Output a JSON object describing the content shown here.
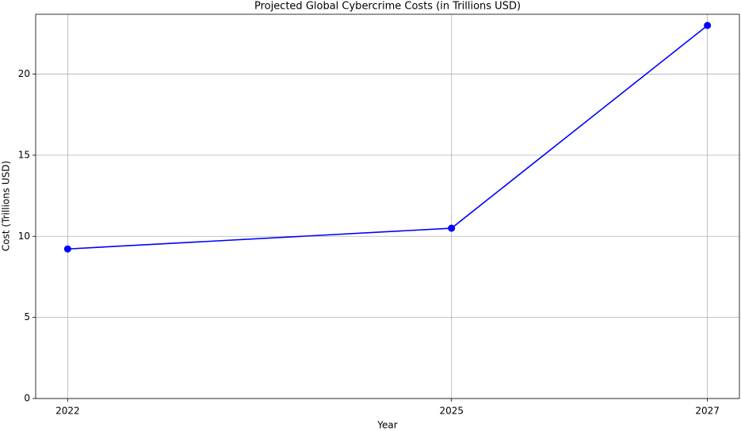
{
  "chart_data": {
    "type": "line",
    "title": "Projected Global Cybercrime Costs (in Trillions USD)",
    "x_label": "Year",
    "y_label": "Cost (Trillions USD)",
    "x": [
      2022,
      2025,
      2027
    ],
    "values": [
      9.22,
      10.5,
      23
    ],
    "color": "#0000ff",
    "xlim": [
      2021.75,
      2027.25
    ],
    "xticks": [
      2022,
      2025,
      2027
    ],
    "ylim": [
      0,
      23.69
    ],
    "yticks": [
      0,
      5,
      10,
      15,
      20
    ],
    "grid": true
  }
}
